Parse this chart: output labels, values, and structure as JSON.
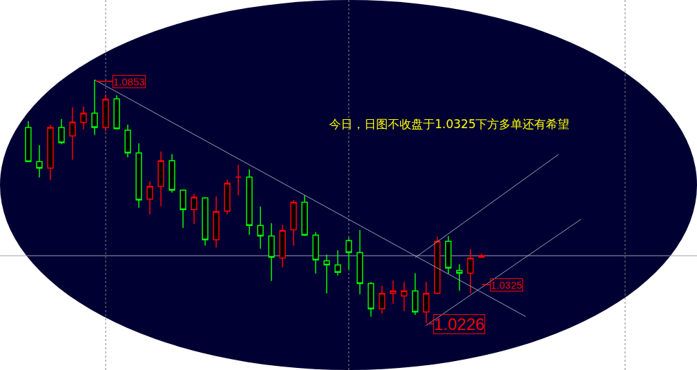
{
  "chart_data": {
    "type": "candlestick",
    "title": "今日，日图不收盘于1.0325下方多单还有希望",
    "categories": [
      null,
      null,
      null,
      null,
      null,
      null,
      null,
      null,
      null,
      null,
      null,
      null,
      null,
      null,
      null,
      null,
      null,
      null,
      null,
      null,
      null,
      null,
      null,
      null,
      null,
      null,
      null,
      null,
      null,
      null,
      null,
      null,
      null,
      null,
      null,
      null,
      null,
      null,
      null,
      null,
      null,
      null,
      null,
      null,
      null,
      null,
      null,
      null,
      null,
      null,
      null
    ],
    "ohlc": [
      [
        1.073,
        1.0746,
        1.0642,
        1.0642
      ],
      [
        1.0642,
        1.0684,
        1.0601,
        1.0625
      ],
      [
        1.0625,
        1.0736,
        1.0594,
        1.073
      ],
      [
        1.073,
        1.0752,
        1.0687,
        1.0691
      ],
      [
        1.0708,
        1.0782,
        1.0647,
        1.0744
      ],
      [
        1.0743,
        1.0784,
        1.0725,
        1.0767
      ],
      [
        1.0767,
        1.0853,
        1.0711,
        1.073
      ],
      [
        1.073,
        1.0815,
        1.072,
        1.0803
      ],
      [
        1.0804,
        1.0813,
        1.0726,
        1.0727
      ],
      [
        1.0723,
        1.0737,
        1.0653,
        1.0664
      ],
      [
        1.0664,
        1.0689,
        1.0523,
        1.0543
      ],
      [
        1.0545,
        1.0591,
        1.0506,
        1.0578
      ],
      [
        1.0578,
        1.0668,
        1.0527,
        1.0644
      ],
      [
        1.0644,
        1.0661,
        1.0562,
        1.0568
      ],
      [
        1.0568,
        1.057,
        1.0471,
        1.0518
      ],
      [
        1.0518,
        1.0559,
        1.0481,
        1.055
      ],
      [
        1.0548,
        1.055,
        1.0425,
        1.044
      ],
      [
        1.044,
        1.0552,
        1.042,
        1.0513
      ],
      [
        1.0514,
        1.0595,
        1.0506,
        1.0586
      ],
      [
        1.0602,
        1.0634,
        1.0555,
        1.0602
      ],
      [
        1.0602,
        1.0622,
        1.0453,
        1.0477
      ],
      [
        1.0477,
        1.0526,
        1.0417,
        1.045
      ],
      [
        1.045,
        1.0483,
        1.0334,
        1.0395
      ],
      [
        1.0393,
        1.0479,
        1.0369,
        1.0464
      ],
      [
        1.0466,
        1.0543,
        1.0425,
        1.0537
      ],
      [
        1.0537,
        1.0555,
        1.045,
        1.0452
      ],
      [
        1.0452,
        1.046,
        1.0353,
        1.0388
      ],
      [
        1.0386,
        1.0402,
        1.0302,
        1.0375
      ],
      [
        1.0375,
        1.0413,
        1.0348,
        1.0356
      ],
      [
        1.0438,
        1.0445,
        1.0363,
        1.0407
      ],
      [
        1.0407,
        1.0465,
        1.0299,
        1.0327
      ],
      [
        1.0327,
        1.0331,
        1.0242,
        1.0262
      ],
      [
        1.0262,
        1.0322,
        1.025,
        1.0302
      ],
      [
        1.0302,
        1.0335,
        1.0275,
        1.0308
      ],
      [
        1.0295,
        1.0331,
        1.0256,
        1.0308
      ],
      [
        1.0308,
        1.0354,
        1.0246,
        1.0254
      ],
      [
        1.0254,
        1.0331,
        1.0226,
        1.0302
      ],
      [
        1.0302,
        1.0448,
        1.03,
        1.0436
      ],
      [
        1.0436,
        1.045,
        1.0352,
        1.0367
      ],
      [
        1.0361,
        1.0377,
        1.0309,
        1.0354
      ],
      [
        1.0354,
        1.0416,
        1.0302,
        1.0393
      ],
      [
        1.0395,
        1.0404,
        1.0393,
        1.0399
      ],
      null,
      null,
      null,
      null,
      null,
      null,
      null,
      null,
      null
    ],
    "colors": [
      "#00ff00",
      "#00ff00",
      "#ff0000",
      "#00ff00",
      "#ff0000",
      "#ff0000",
      "#00ff00",
      "#ff0000",
      "#00ff00",
      "#00ff00",
      "#00ff00",
      "#ff0000",
      "#ff0000",
      "#00ff00",
      "#00ff00",
      "#ff0000",
      "#00ff00",
      "#ff0000",
      "#ff0000",
      "#ff0000",
      "#00ff00",
      "#00ff00",
      "#00ff00",
      "#ff0000",
      "#ff0000",
      "#00ff00",
      "#00ff00",
      "#00ff00",
      "#00ff00",
      "#00ff00",
      "#00ff00",
      "#00ff00",
      "#ff0000",
      "#ff0000",
      "#ff0000",
      "#00ff00",
      "#ff0000",
      "#ff0000",
      "#00ff00",
      "#00ff00",
      "#ff0000",
      "#ff0000",
      null,
      null,
      null,
      null,
      null,
      null,
      null,
      null,
      null
    ],
    "series": [
      {
        "type": "line",
        "color": "#a0a0b8",
        "values": [
          null,
          null,
          null,
          null,
          null,
          null,
          1.0853,
          null,
          null,
          null,
          null,
          null,
          null,
          null,
          null,
          null,
          null,
          null,
          null,
          null,
          null,
          null,
          null,
          null,
          null,
          null,
          null,
          null,
          null,
          null,
          null,
          null,
          null,
          null,
          null,
          null,
          null,
          null,
          null,
          null,
          null,
          null,
          null,
          null,
          null,
          1.0242,
          null,
          null,
          null,
          null,
          null
        ]
      },
      {
        "type": "line",
        "color": "#a0a0b8",
        "values": [
          null,
          null,
          null,
          null,
          null,
          null,
          null,
          null,
          null,
          null,
          null,
          null,
          null,
          null,
          null,
          null,
          null,
          null,
          null,
          null,
          null,
          null,
          null,
          null,
          null,
          null,
          null,
          null,
          null,
          null,
          null,
          null,
          null,
          null,
          null,
          1.0394,
          null,
          null,
          null,
          null,
          null,
          null,
          null,
          null,
          null,
          null,
          null,
          null,
          1.0661,
          null,
          null
        ]
      },
      {
        "type": "line",
        "color": "#a0a0b8",
        "values": [
          null,
          null,
          null,
          null,
          null,
          null,
          null,
          null,
          null,
          null,
          null,
          null,
          null,
          null,
          null,
          null,
          null,
          null,
          null,
          null,
          null,
          null,
          null,
          null,
          null,
          null,
          null,
          null,
          null,
          null,
          null,
          null,
          null,
          null,
          null,
          null,
          1.0219,
          null,
          null,
          null,
          null,
          null,
          null,
          null,
          null,
          null,
          null,
          null,
          null,
          null,
          1.0493
        ]
      }
    ],
    "ref_lines": [
      {
        "axis": "y",
        "value": 1.0399,
        "color": "#a0a0b8"
      }
    ],
    "annotations": [
      "1.0853",
      "1.0226",
      "1.0325"
    ],
    "ylim": [
      1.0104,
      1.1059
    ]
  }
}
